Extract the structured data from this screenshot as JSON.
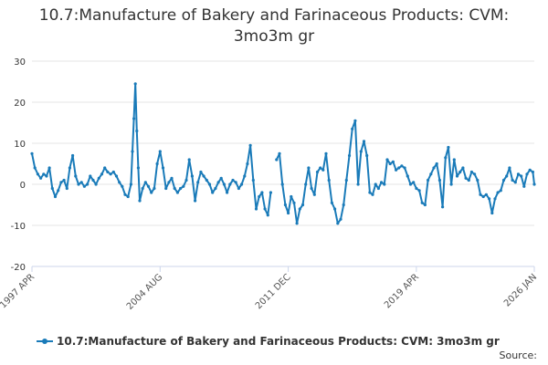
{
  "title_line1": "10.7:Manufacture of Bakery and Farinaceous Products: CVM:",
  "title_line2": "3mo3m gr",
  "source_label": "Source:",
  "chart_data": {
    "type": "line",
    "title": "10.7:Manufacture of Bakery and Farinaceous Products: CVM: 3mo3m gr",
    "xlabel": "",
    "ylabel": "",
    "ylim": [
      -20,
      30
    ],
    "yticks": [
      30,
      20,
      10,
      0,
      -10,
      -20
    ],
    "xlim": [
      "1997-04",
      "2026-01"
    ],
    "xtick_labels": [
      "1997 APR",
      "2004 AUG",
      "2011 DEC",
      "2019 APR",
      "2026 JAN"
    ],
    "xtick_dates": [
      "1997-04",
      "2004-08",
      "2011-12",
      "2019-04",
      "2026-01"
    ],
    "grid": true,
    "legend_position": "bottom",
    "color": "#1a7bb9",
    "series": [
      {
        "name": "10.7:Manufacture of Bakery and Farinaceous Products: CVM: 3mo3m gr",
        "points": [
          [
            "1997-04",
            7.5
          ],
          [
            "1997-06",
            4.0
          ],
          [
            "1997-08",
            2.5
          ],
          [
            "1997-10",
            1.5
          ],
          [
            "1997-12",
            2.5
          ],
          [
            "1998-02",
            2.0
          ],
          [
            "1998-04",
            4.0
          ],
          [
            "1998-06",
            -1.0
          ],
          [
            "1998-08",
            -3.0
          ],
          [
            "1998-10",
            -1.5
          ],
          [
            "1998-12",
            0.5
          ],
          [
            "1999-02",
            1.0
          ],
          [
            "1999-04",
            -1.0
          ],
          [
            "1999-06",
            4.0
          ],
          [
            "1999-08",
            7.0
          ],
          [
            "1999-10",
            2.0
          ],
          [
            "1999-12",
            0.0
          ],
          [
            "2000-02",
            0.5
          ],
          [
            "2000-04",
            -0.5
          ],
          [
            "2000-06",
            0.0
          ],
          [
            "2000-08",
            2.0
          ],
          [
            "2000-10",
            1.0
          ],
          [
            "2000-12",
            0.0
          ],
          [
            "2001-02",
            1.5
          ],
          [
            "2001-04",
            2.5
          ],
          [
            "2001-06",
            4.0
          ],
          [
            "2001-08",
            3.0
          ],
          [
            "2001-10",
            2.5
          ],
          [
            "2001-12",
            3.0
          ],
          [
            "2002-02",
            2.0
          ],
          [
            "2002-04",
            0.5
          ],
          [
            "2002-06",
            -0.5
          ],
          [
            "2002-08",
            -2.5
          ],
          [
            "2002-10",
            -3.0
          ],
          [
            "2002-12",
            0.0
          ],
          [
            "2003-01",
            8.0
          ],
          [
            "2003-02",
            16.0
          ],
          [
            "2003-03",
            24.5
          ],
          [
            "2003-04",
            13.0
          ],
          [
            "2003-05",
            4.0
          ],
          [
            "2003-06",
            -4.0
          ],
          [
            "2003-08",
            -1.0
          ],
          [
            "2003-10",
            0.5
          ],
          [
            "2003-12",
            -0.5
          ],
          [
            "2004-02",
            -2.0
          ],
          [
            "2004-04",
            -1.0
          ],
          [
            "2004-06",
            5.0
          ],
          [
            "2004-08",
            8.0
          ],
          [
            "2004-10",
            4.0
          ],
          [
            "2004-12",
            -1.0
          ],
          [
            "2005-02",
            0.5
          ],
          [
            "2005-04",
            1.5
          ],
          [
            "2005-06",
            -1.0
          ],
          [
            "2005-08",
            -2.0
          ],
          [
            "2005-10",
            -1.0
          ],
          [
            "2005-12",
            -0.5
          ],
          [
            "2006-02",
            1.0
          ],
          [
            "2006-04",
            6.0
          ],
          [
            "2006-06",
            2.0
          ],
          [
            "2006-08",
            -4.0
          ],
          [
            "2006-10",
            0.5
          ],
          [
            "2006-12",
            3.0
          ],
          [
            "2007-02",
            2.0
          ],
          [
            "2007-04",
            1.0
          ],
          [
            "2007-06",
            0.0
          ],
          [
            "2007-08",
            -2.0
          ],
          [
            "2007-10",
            -1.0
          ],
          [
            "2007-12",
            0.5
          ],
          [
            "2008-02",
            1.5
          ],
          [
            "2008-04",
            0.0
          ],
          [
            "2008-06",
            -2.0
          ],
          [
            "2008-08",
            0.0
          ],
          [
            "2008-10",
            1.0
          ],
          [
            "2008-12",
            0.5
          ],
          [
            "2009-02",
            -1.0
          ],
          [
            "2009-04",
            0.0
          ],
          [
            "2009-06",
            2.0
          ],
          [
            "2009-08",
            5.0
          ],
          [
            "2009-10",
            9.5
          ],
          [
            "2009-12",
            1.0
          ],
          [
            "2010-02",
            -6.0
          ],
          [
            "2010-04",
            -3.0
          ],
          [
            "2010-06",
            -2.0
          ],
          [
            "2010-08",
            -6.0
          ],
          [
            "2010-10",
            -7.5
          ],
          [
            "2010-12",
            -2.0
          ],
          [
            "2011-04",
            6.0
          ],
          [
            "2011-06",
            7.5
          ],
          [
            "2011-08",
            0.0
          ],
          [
            "2011-10",
            -5.0
          ],
          [
            "2011-12",
            -7.0
          ],
          [
            "2012-02",
            -3.0
          ],
          [
            "2012-04",
            -4.5
          ],
          [
            "2012-06",
            -9.5
          ],
          [
            "2012-08",
            -6.0
          ],
          [
            "2012-10",
            -5.0
          ],
          [
            "2012-12",
            0.0
          ],
          [
            "2013-02",
            4.0
          ],
          [
            "2013-04",
            -1.0
          ],
          [
            "2013-06",
            -2.5
          ],
          [
            "2013-08",
            3.0
          ],
          [
            "2013-10",
            4.0
          ],
          [
            "2013-12",
            3.5
          ],
          [
            "2014-02",
            7.5
          ],
          [
            "2014-04",
            1.0
          ],
          [
            "2014-06",
            -4.5
          ],
          [
            "2014-08",
            -6.0
          ],
          [
            "2014-10",
            -9.5
          ],
          [
            "2014-12",
            -8.5
          ],
          [
            "2015-02",
            -5.0
          ],
          [
            "2015-04",
            1.0
          ],
          [
            "2015-06",
            7.0
          ],
          [
            "2015-08",
            13.5
          ],
          [
            "2015-10",
            15.5
          ],
          [
            "2015-12",
            0.0
          ],
          [
            "2016-02",
            8.0
          ],
          [
            "2016-04",
            10.5
          ],
          [
            "2016-06",
            7.0
          ],
          [
            "2016-08",
            -2.0
          ],
          [
            "2016-10",
            -2.5
          ],
          [
            "2016-12",
            0.0
          ],
          [
            "2017-02",
            -1.0
          ],
          [
            "2017-04",
            0.5
          ],
          [
            "2017-06",
            0.0
          ],
          [
            "2017-08",
            6.0
          ],
          [
            "2017-10",
            5.0
          ],
          [
            "2017-12",
            5.5
          ],
          [
            "2018-02",
            3.5
          ],
          [
            "2018-04",
            4.0
          ],
          [
            "2018-06",
            4.5
          ],
          [
            "2018-08",
            4.0
          ],
          [
            "2018-10",
            2.0
          ],
          [
            "2018-12",
            0.0
          ],
          [
            "2019-02",
            0.5
          ],
          [
            "2019-04",
            -1.0
          ],
          [
            "2019-06",
            -1.5
          ],
          [
            "2019-08",
            -4.5
          ],
          [
            "2019-10",
            -5.0
          ],
          [
            "2019-12",
            1.0
          ],
          [
            "2020-02",
            2.5
          ],
          [
            "2020-04",
            4.0
          ],
          [
            "2020-06",
            5.0
          ],
          [
            "2020-08",
            1.0
          ],
          [
            "2020-10",
            -5.5
          ],
          [
            "2020-12",
            6.5
          ],
          [
            "2021-02",
            9.0
          ],
          [
            "2021-04",
            0.0
          ],
          [
            "2021-06",
            6.0
          ],
          [
            "2021-08",
            2.0
          ],
          [
            "2021-10",
            3.0
          ],
          [
            "2021-12",
            4.0
          ],
          [
            "2022-02",
            1.5
          ],
          [
            "2022-04",
            1.0
          ],
          [
            "2022-06",
            3.0
          ],
          [
            "2022-08",
            2.5
          ],
          [
            "2022-10",
            1.0
          ],
          [
            "2022-12",
            -2.5
          ],
          [
            "2023-02",
            -3.0
          ],
          [
            "2023-04",
            -2.5
          ],
          [
            "2023-06",
            -3.5
          ],
          [
            "2023-08",
            -7.0
          ],
          [
            "2023-10",
            -3.5
          ],
          [
            "2023-12",
            -2.0
          ],
          [
            "2024-02",
            -1.5
          ],
          [
            "2024-04",
            1.0
          ],
          [
            "2024-06",
            2.0
          ],
          [
            "2024-08",
            4.0
          ],
          [
            "2024-10",
            1.0
          ],
          [
            "2024-12",
            0.5
          ],
          [
            "2025-02",
            2.5
          ],
          [
            "2025-04",
            2.0
          ],
          [
            "2025-06",
            -0.5
          ],
          [
            "2025-08",
            2.5
          ],
          [
            "2025-10",
            3.5
          ],
          [
            "2025-12",
            3.0
          ],
          [
            "2026-01",
            0.0
          ]
        ]
      }
    ]
  }
}
